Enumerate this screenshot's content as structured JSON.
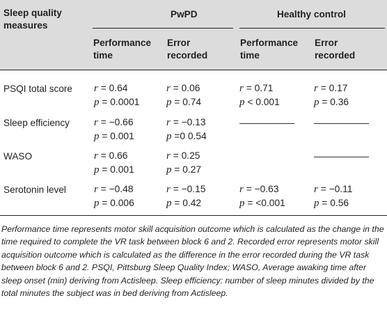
{
  "table": {
    "header": {
      "col1": "Sleep quality measures",
      "group_pwpd": "PwPD",
      "group_healthy": "Healthy control",
      "perf_time": "Performance time",
      "error_recorded": "Error recorded"
    },
    "rows": [
      {
        "label": "PSQI total score",
        "pwpd_perf": {
          "r": "= 0.64",
          "p": "= 0.0001"
        },
        "pwpd_err": {
          "r": "= 0.06",
          "p": "= 0.74"
        },
        "hc_perf": {
          "r": "= 0.71",
          "p": "< 0.001"
        },
        "hc_err": {
          "r": "= 0.17",
          "p": "= 0.36"
        }
      },
      {
        "label": "Sleep efficiency",
        "pwpd_perf": {
          "r": "= −0.66",
          "p": "= 0.001"
        },
        "pwpd_err": {
          "r": "= −0.13",
          "p": "=0 0.54"
        },
        "hc_perf": {
          "dash": "——————"
        },
        "hc_err": {
          "dash": "——————"
        }
      },
      {
        "label": "WASO",
        "pwpd_perf": {
          "r": "= 0.66",
          "p": "= 0.001"
        },
        "pwpd_err": {
          "r": "= 0.25",
          "p": "= 0.27"
        },
        "hc_perf": {
          "dash": ""
        },
        "hc_err": {
          "dash": "——————"
        }
      },
      {
        "label": "Serotonin level",
        "pwpd_perf": {
          "r": "= −0.48",
          "p": "= 0.006"
        },
        "pwpd_err": {
          "r": "= −0.15",
          "p": "= 0.42"
        },
        "hc_perf": {
          "r": "= −0.63",
          "p": "= <0.001"
        },
        "hc_err": {
          "r": "= −0.11",
          "p": "= 0.56"
        }
      }
    ],
    "footnote": "Performance time represents motor skill acquisition outcome which is calculated as the change in the time required to complete the VR task between block 6 and 2. Recorded error represents motor skill acquisition outcome which is calculated as the difference in the error recorded during the VR task between block 6 and 2. PSQI, Pittsburg Sleep Quality Index; WASO, Average awaking time after sleep onset (min) deriving from Actisleep. Sleep efficiency: number of sleep minutes divided by the total minutes the subject was in bed deriving from Actisleep."
  }
}
